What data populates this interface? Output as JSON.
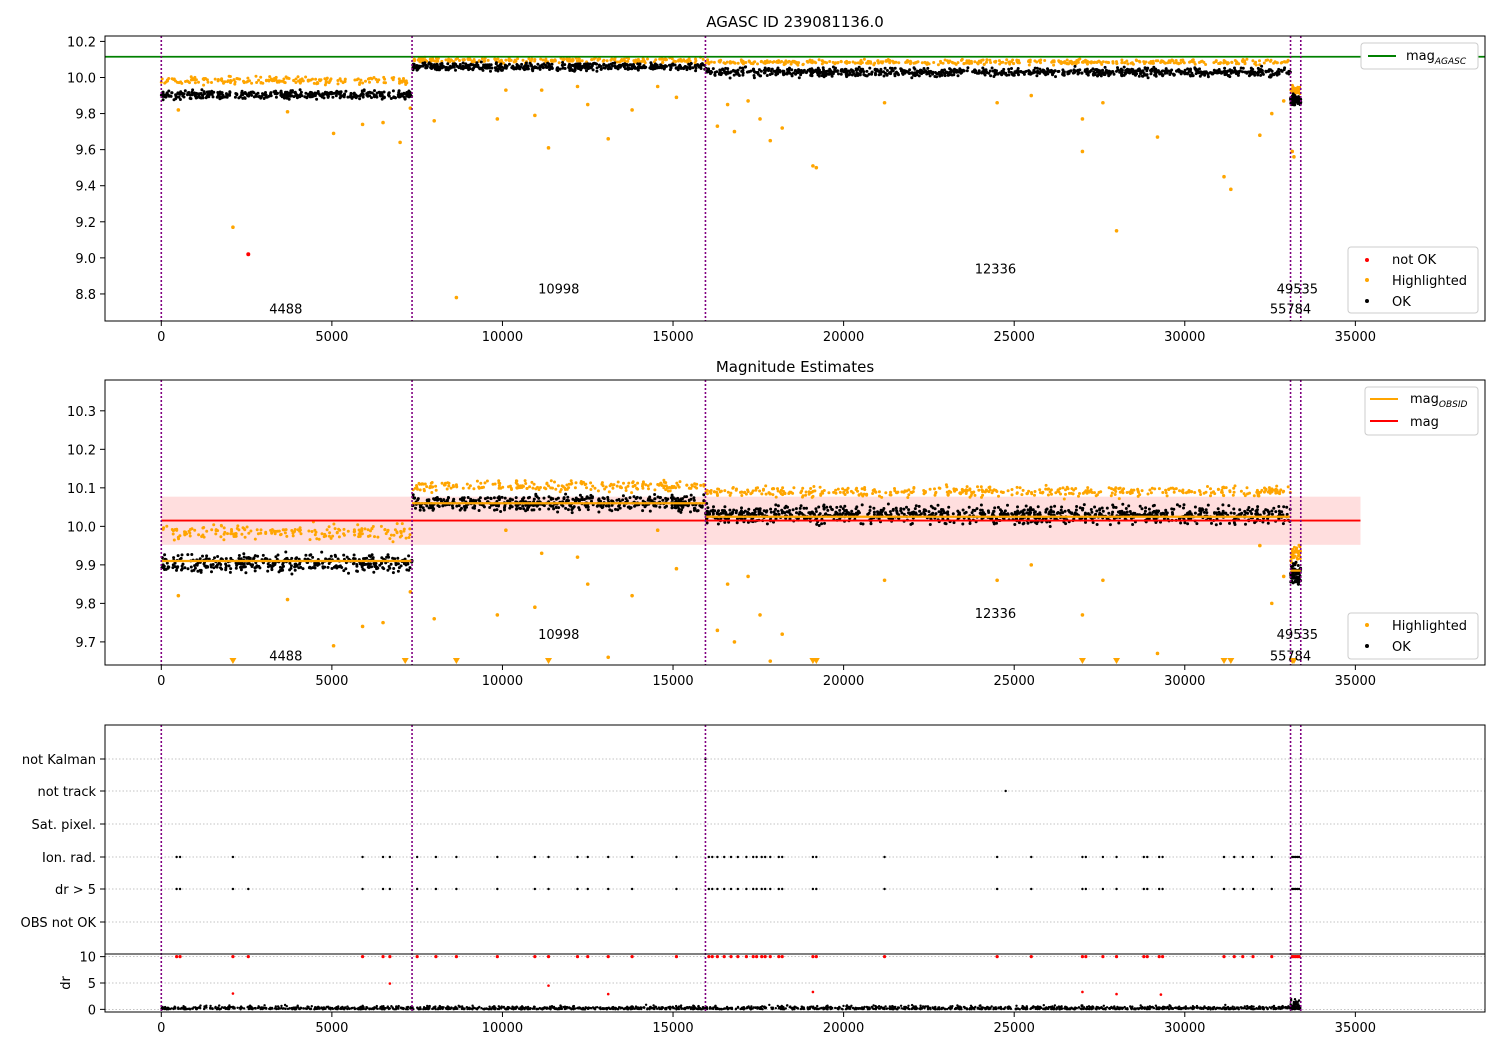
{
  "chart_data": [
    {
      "type": "scatter",
      "title": "AGASC ID 239081136.0",
      "xlabel": "",
      "ylabel": "",
      "xlim": [
        -1650,
        38800
      ],
      "ylim": [
        8.65,
        10.23
      ],
      "x_ticks": [
        0,
        5000,
        10000,
        15000,
        20000,
        25000,
        30000,
        35000
      ],
      "y_ticks": [
        8.8,
        9.0,
        9.2,
        9.4,
        9.6,
        9.8,
        10.0,
        10.2
      ],
      "grid": false,
      "obs_boundaries": [
        0,
        7350,
        15950,
        33100,
        33400
      ],
      "obs_labels": [
        {
          "text": "4488",
          "x": 3650,
          "y": 8.72
        },
        {
          "text": "10998",
          "x": 11650,
          "y": 8.83
        },
        {
          "text": "12336",
          "x": 24450,
          "y": 8.94
        },
        {
          "text": "49535",
          "x": 33300,
          "y": 8.83
        },
        {
          "text": "55784",
          "x": 33100,
          "y": 8.72
        }
      ],
      "hlines": [
        {
          "name": "mag",
          "subscript": "AGASC",
          "y": 10.115,
          "color": "#008000"
        }
      ],
      "segments": [
        {
          "x0": 0,
          "x1": 7350,
          "ok_center": 9.905,
          "ok_spread": 0.035,
          "hl_center": 9.985,
          "hl_spread": 0.03
        },
        {
          "x0": 7350,
          "x1": 15950,
          "ok_center": 10.06,
          "ok_spread": 0.03,
          "hl_center": 10.095,
          "hl_spread": 0.02
        },
        {
          "x0": 15950,
          "x1": 33100,
          "ok_center": 10.03,
          "ok_spread": 0.035,
          "hl_center": 10.085,
          "hl_spread": 0.02
        },
        {
          "x0": 33100,
          "x1": 33400,
          "ok_center": 9.875,
          "ok_spread": 0.04,
          "hl_center": 9.93,
          "hl_spread": 0.03
        }
      ],
      "highlight_outliers": [
        [
          500,
          9.82
        ],
        [
          2100,
          9.17
        ],
        [
          3700,
          9.81
        ],
        [
          5050,
          9.69
        ],
        [
          5900,
          9.74
        ],
        [
          6500,
          9.75
        ],
        [
          7000,
          9.64
        ],
        [
          7300,
          9.83
        ],
        [
          8000,
          9.76
        ],
        [
          8650,
          8.78
        ],
        [
          9850,
          9.77
        ],
        [
          10100,
          9.93
        ],
        [
          10950,
          9.79
        ],
        [
          11150,
          9.93
        ],
        [
          11350,
          9.61
        ],
        [
          12200,
          9.95
        ],
        [
          12500,
          9.85
        ],
        [
          13100,
          9.66
        ],
        [
          13800,
          9.82
        ],
        [
          14550,
          9.95
        ],
        [
          15100,
          9.89
        ],
        [
          16300,
          9.73
        ],
        [
          16600,
          9.85
        ],
        [
          16800,
          9.7
        ],
        [
          17200,
          9.87
        ],
        [
          17550,
          9.77
        ],
        [
          17850,
          9.65
        ],
        [
          18200,
          9.72
        ],
        [
          19100,
          9.51
        ],
        [
          19200,
          9.5
        ],
        [
          21200,
          9.86
        ],
        [
          24500,
          9.86
        ],
        [
          25500,
          9.9
        ],
        [
          27000,
          9.77
        ],
        [
          27000,
          9.59
        ],
        [
          27600,
          9.86
        ],
        [
          28000,
          9.15
        ],
        [
          29200,
          9.67
        ],
        [
          31150,
          9.45
        ],
        [
          31350,
          9.38
        ],
        [
          32200,
          9.68
        ],
        [
          32550,
          9.8
        ],
        [
          32900,
          9.87
        ],
        [
          33150,
          9.59
        ],
        [
          33200,
          9.56
        ]
      ],
      "not_ok_points": [
        [
          2550,
          9.02
        ]
      ],
      "legend_upper": {
        "position": "top-right",
        "entries": [
          {
            "label": "mag",
            "subscript": "AGASC"
          }
        ]
      },
      "legend_lower": {
        "position": "bottom-right",
        "entries": [
          "not OK",
          "Highlighted",
          "OK"
        ]
      },
      "colors": {
        "ok": "#000000",
        "highlighted": "#ffa500",
        "not_ok": "#ff0000",
        "agasc_line": "#008000",
        "obs_line": "#800080"
      }
    },
    {
      "type": "scatter",
      "title": "Magnitude Estimates",
      "xlabel": "",
      "ylabel": "",
      "xlim": [
        -1650,
        38800
      ],
      "ylim": [
        9.64,
        10.38
      ],
      "x_ticks": [
        0,
        5000,
        10000,
        15000,
        20000,
        25000,
        30000,
        35000
      ],
      "y_ticks": [
        9.7,
        9.8,
        9.9,
        10.0,
        10.1,
        10.2,
        10.3
      ],
      "grid": false,
      "obs_boundaries": [
        0,
        7350,
        15950,
        33100,
        33400
      ],
      "obs_labels": [
        {
          "text": "4488",
          "x": 3650,
          "y": 9.665
        },
        {
          "text": "10998",
          "x": 11650,
          "y": 9.72
        },
        {
          "text": "12336",
          "x": 24450,
          "y": 9.775
        },
        {
          "text": "49535",
          "x": 33300,
          "y": 9.72
        },
        {
          "text": "55784",
          "x": 33100,
          "y": 9.665
        }
      ],
      "mag_line": {
        "name": "mag",
        "y": 10.015,
        "band": [
          9.952,
          10.077
        ],
        "x0": 0,
        "x1": 35150,
        "color": "#ff0000"
      },
      "obsid_mags": [
        {
          "x0": 0,
          "x1": 7350,
          "y": 9.91
        },
        {
          "x0": 7350,
          "x1": 15950,
          "y": 10.06
        },
        {
          "x0": 15950,
          "x1": 33100,
          "y": 10.025
        },
        {
          "x0": 33100,
          "x1": 33400,
          "y": 9.885
        }
      ],
      "segments": [
        {
          "x0": 0,
          "x1": 7350,
          "ok_center": 9.905,
          "ok_spread": 0.035,
          "hl_center": 9.985,
          "hl_spread": 0.03
        },
        {
          "x0": 7350,
          "x1": 15950,
          "ok_center": 10.06,
          "ok_spread": 0.03,
          "hl_center": 10.105,
          "hl_spread": 0.02
        },
        {
          "x0": 15950,
          "x1": 33100,
          "ok_center": 10.03,
          "ok_spread": 0.035,
          "hl_center": 10.09,
          "hl_spread": 0.02
        },
        {
          "x0": 33100,
          "x1": 33400,
          "ok_center": 9.875,
          "ok_spread": 0.04,
          "hl_center": 9.93,
          "hl_spread": 0.03
        }
      ],
      "highlight_outliers": [
        [
          500,
          9.82
        ],
        [
          3700,
          9.81
        ],
        [
          5050,
          9.69
        ],
        [
          5900,
          9.74
        ],
        [
          6500,
          9.75
        ],
        [
          7300,
          9.83
        ],
        [
          8000,
          9.76
        ],
        [
          9850,
          9.77
        ],
        [
          10100,
          9.99
        ],
        [
          10950,
          9.79
        ],
        [
          11150,
          9.93
        ],
        [
          12200,
          9.92
        ],
        [
          12500,
          9.85
        ],
        [
          13100,
          9.66
        ],
        [
          13800,
          9.82
        ],
        [
          14550,
          9.99
        ],
        [
          15100,
          9.89
        ],
        [
          16300,
          9.73
        ],
        [
          16600,
          9.85
        ],
        [
          16800,
          9.7
        ],
        [
          17200,
          9.87
        ],
        [
          17550,
          9.77
        ],
        [
          17850,
          9.65
        ],
        [
          18200,
          9.72
        ],
        [
          21200,
          9.86
        ],
        [
          24500,
          9.86
        ],
        [
          25500,
          9.9
        ],
        [
          27000,
          9.77
        ],
        [
          27600,
          9.86
        ],
        [
          29200,
          9.67
        ],
        [
          32200,
          9.95
        ],
        [
          32550,
          9.8
        ],
        [
          32900,
          9.87
        ]
      ],
      "offscale_markers": [
        2100,
        7150,
        8650,
        11350,
        19100,
        19200,
        27000,
        28000,
        31150,
        31350,
        33150,
        33200
      ],
      "legend_upper": {
        "position": "top-right",
        "entries": [
          {
            "label": "mag",
            "subscript": "OBSID"
          },
          {
            "label": "mag",
            "subscript": ""
          }
        ]
      },
      "legend_lower": {
        "position": "bottom-right",
        "entries": [
          "Highlighted",
          "OK"
        ]
      },
      "colors": {
        "ok": "#000000",
        "highlighted": "#ffa500",
        "mag_line": "#ff0000",
        "band": "#ffd6d6",
        "obsid_line": "#ffa500",
        "obs_line": "#800080"
      }
    },
    {
      "type": "scatter",
      "title": "",
      "xlabel": "",
      "ylabel": "",
      "xlim": [
        -1650,
        38800
      ],
      "flag_rows": [
        "not Kalman",
        "not track",
        "Sat. pixel.",
        "Ion. rad.",
        "dr > 5",
        "OBS not OK"
      ],
      "flag_points": {
        "not Kalman": [
          15950
        ],
        "not track": [
          24750
        ],
        "Sat. pixel.": [],
        "Ion. rad.": [
          450,
          550,
          2100,
          5900,
          6500,
          6700,
          7500,
          8050,
          8650,
          9850,
          10950,
          11350,
          12200,
          12500,
          13100,
          13800,
          15100,
          16050,
          16150,
          16300,
          16500,
          16700,
          16900,
          17150,
          17350,
          17450,
          17600,
          17700,
          17850,
          18100,
          18200,
          19100,
          19200,
          21200,
          24500,
          25500,
          27000,
          27100,
          27600,
          28000,
          28800,
          28900,
          29250,
          29350,
          31150,
          31450,
          31700,
          32000,
          32550,
          33150,
          33200,
          33250,
          33300,
          33350
        ],
        "dr > 5": [
          450,
          550,
          2100,
          2550,
          5900,
          6500,
          6700,
          7500,
          8050,
          8650,
          9850,
          10950,
          11350,
          12200,
          12500,
          13100,
          13800,
          15100,
          16050,
          16150,
          16300,
          16500,
          16700,
          16900,
          17150,
          17350,
          17450,
          17600,
          17700,
          17850,
          18100,
          18200,
          19100,
          19200,
          21200,
          24500,
          25500,
          27000,
          27100,
          27600,
          28000,
          28800,
          28900,
          29250,
          29350,
          31150,
          31450,
          31700,
          32000,
          32550,
          33150,
          33200,
          33250,
          33300,
          33350
        ],
        "OBS not OK": []
      },
      "dr_panel": {
        "ylabel": "dr",
        "ylim": [
          -0.5,
          10.5
        ],
        "y_ticks": [
          0,
          5,
          10
        ],
        "clipped_value": 10,
        "high_points": [
          [
            2100,
            3.0
          ],
          [
            6700,
            4.9
          ],
          [
            11350,
            4.5
          ],
          [
            13100,
            2.9
          ],
          [
            19100,
            3.3
          ],
          [
            27000,
            3.3
          ],
          [
            28000,
            2.9
          ],
          [
            29300,
            2.8
          ]
        ]
      },
      "colors": {
        "ok": "#000000",
        "dr_high": "#ff0000",
        "obs_line": "#800080"
      }
    }
  ]
}
